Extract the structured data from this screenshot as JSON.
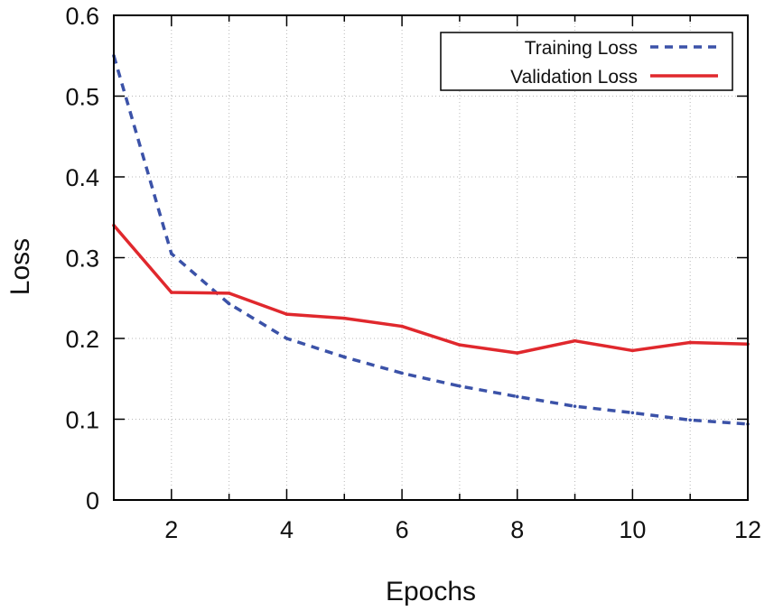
{
  "chart_data": {
    "type": "line",
    "title": "",
    "xlabel": "Epochs",
    "ylabel": "Loss",
    "xlim": [
      1,
      12
    ],
    "ylim": [
      0,
      0.6
    ],
    "xticks": [
      2,
      4,
      6,
      8,
      10,
      12
    ],
    "yticks": [
      0,
      0.1,
      0.2,
      0.3,
      0.4,
      0.5,
      0.6
    ],
    "xtick_labels": [
      "2",
      "4",
      "6",
      "8",
      "10",
      "12"
    ],
    "ytick_labels": [
      "0",
      "0.1",
      "0.2",
      "0.3",
      "0.4",
      "0.5",
      "0.6"
    ],
    "grid": true,
    "legend_position": "top-right",
    "x": [
      1,
      2,
      3,
      4,
      5,
      6,
      7,
      8,
      9,
      10,
      11,
      12
    ],
    "series": [
      {
        "name": "Training Loss",
        "color": "#3b52a8",
        "style": "dashed",
        "values": [
          0.55,
          0.305,
          0.243,
          0.2,
          0.177,
          0.157,
          0.141,
          0.128,
          0.116,
          0.108,
          0.099,
          0.094
        ]
      },
      {
        "name": "Validation Loss",
        "color": "#e0282d",
        "style": "solid",
        "values": [
          0.34,
          0.257,
          0.256,
          0.23,
          0.225,
          0.215,
          0.192,
          0.182,
          0.197,
          0.185,
          0.195,
          0.193
        ]
      }
    ]
  }
}
